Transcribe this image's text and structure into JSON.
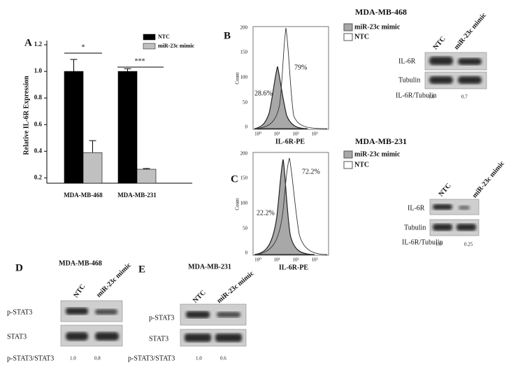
{
  "chart_data": {
    "type": "bar",
    "panel_label": "A",
    "y_label": "Relative IL-6R Expression",
    "categories": [
      "MDA-MB-468",
      "MDA-MB-231"
    ],
    "series": [
      {
        "name": "NTC",
        "color": "#000000",
        "values": [
          1.0,
          1.0
        ],
        "errors": [
          0.09,
          0.02
        ]
      },
      {
        "name": "miR-23c mimic",
        "color": "#c0c0c0",
        "values": [
          0.39,
          0.265
        ],
        "errors": [
          0.09,
          0.005
        ]
      }
    ],
    "ylim": [
      0.16,
      1.2
    ],
    "yticks": [
      0.2,
      0.4,
      0.6,
      0.8,
      {
        "value": 1.0,
        "label": "1.0"
      },
      1.2
    ],
    "significance": [
      "*",
      "***"
    ]
  },
  "panel_b": {
    "label": "B",
    "title": "MDA-MB-468",
    "legend": [
      "miR-23c mimic",
      "NTC"
    ],
    "x_label": "IL-6R-PE",
    "y_label": "Count",
    "yticks": [
      "200",
      "150",
      "100",
      "50",
      "0"
    ],
    "xticks": [
      "10⁰",
      "10¹",
      "10²",
      "10³"
    ],
    "percent_mimic": "28.6%",
    "percent_ntc": "79%",
    "blot": {
      "lanes": [
        "NTC",
        "miR-23c mimic"
      ],
      "rows": [
        "IL-6R",
        "Tubulin"
      ],
      "ratio_label": "IL-6R/Tubulin",
      "ratios": [
        "1.0",
        "0.7"
      ]
    }
  },
  "panel_c": {
    "label": "C",
    "title": "MDA-MB-231",
    "legend": [
      "miR-23c mimic",
      "NTC"
    ],
    "x_label": "IL-6R-PE",
    "y_label": "Count",
    "yticks": [
      "200",
      "150",
      "100",
      "50",
      "0"
    ],
    "xticks": [
      "10⁰",
      "10¹",
      "10²",
      "10³"
    ],
    "percent_mimic": "22.2%",
    "percent_ntc": "72.2%",
    "blot": {
      "lanes": [
        "NTC",
        "miR-23c mimic"
      ],
      "rows": [
        "IL-6R",
        "Tubulin"
      ],
      "ratio_label": "IL-6R/Tubulin",
      "ratios": [
        "1.0",
        "0.25"
      ]
    }
  },
  "panel_d": {
    "label": "D",
    "title": "MDA-MB-468",
    "blot": {
      "lanes": [
        "NTC",
        "miR-23c mimic"
      ],
      "rows": [
        "p-STAT3",
        "STAT3"
      ],
      "ratio_label": "p-STAT3/STAT3",
      "ratios": [
        "1.0",
        "0.8"
      ]
    }
  },
  "panel_e": {
    "label": "E",
    "title": "MDA-MB-231",
    "blot": {
      "lanes": [
        "NTC",
        "miR-23c mimic"
      ],
      "rows": [
        "p-STAT3",
        "STAT3"
      ],
      "ratio_label": "p-STAT3/STAT3",
      "ratios": [
        "1.0",
        "0.6"
      ]
    }
  }
}
